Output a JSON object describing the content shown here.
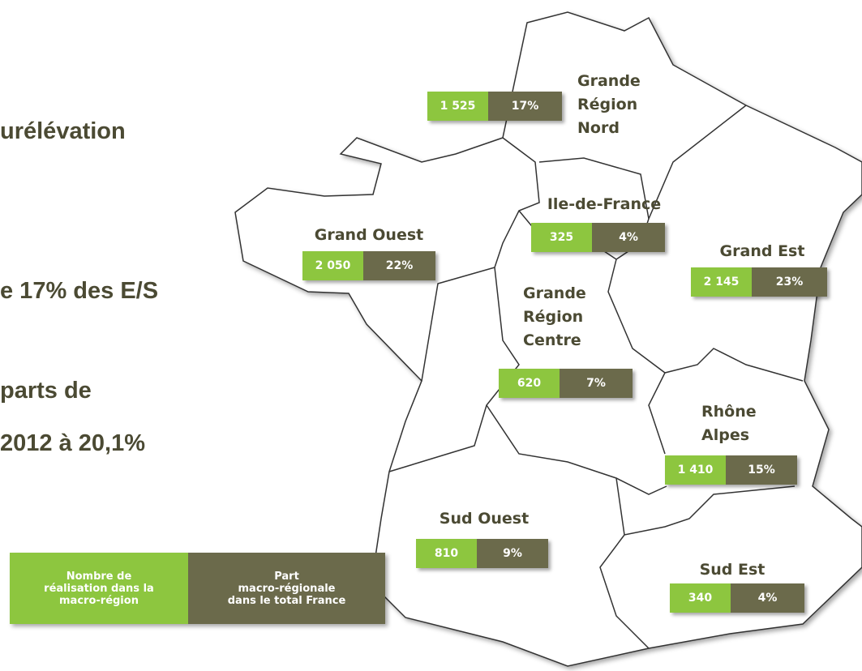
{
  "side_text": [
    "urélévation",
    "e 17% des E/S",
    "parts de",
    "2012 à 20,1%"
  ],
  "regions": [
    {
      "name": [
        "Grande",
        "Région",
        "Nord"
      ],
      "count": "1 525",
      "share": "17%"
    },
    {
      "name": [
        "Ile-de-France"
      ],
      "count": "325",
      "share": "4%"
    },
    {
      "name": [
        "Grand Ouest"
      ],
      "count": "2 050",
      "share": "22%"
    },
    {
      "name": [
        "Grand Est"
      ],
      "count": "2 145",
      "share": "23%"
    },
    {
      "name": [
        "Grande",
        "Région",
        "Centre"
      ],
      "count": "620",
      "share": "7%"
    },
    {
      "name": [
        "Rhône",
        "Alpes"
      ],
      "count": "1 410",
      "share": "15%"
    },
    {
      "name": [
        "Sud Ouest"
      ],
      "count": "810",
      "share": "9%"
    },
    {
      "name": [
        "Sud Est"
      ],
      "count": "340",
      "share": "4%"
    }
  ],
  "legend": {
    "count": [
      "Nombre de",
      "réalisation dans la",
      "macro-région"
    ],
    "share": [
      "Part",
      "macro-régionale",
      "dans le total France"
    ]
  }
}
